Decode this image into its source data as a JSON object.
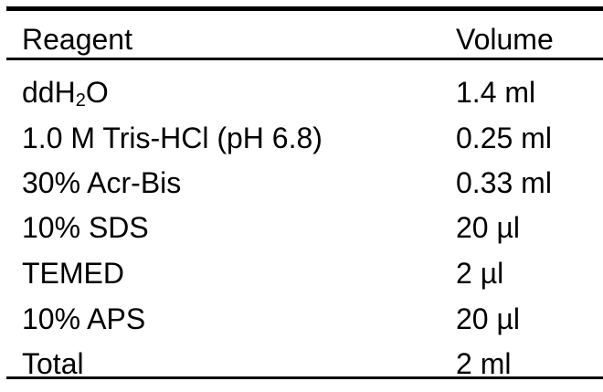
{
  "table": {
    "headers": {
      "reagent": "Reagent",
      "volume": "Volume"
    },
    "formula": {
      "prefix": "ddH",
      "subscript": "2",
      "suffix": "O"
    },
    "rows": [
      {
        "reagent": "ddH₂O",
        "volume": "1.4 ml"
      },
      {
        "reagent": "1.0 M Tris-HCl (pH 6.8)",
        "volume": "0.25 ml"
      },
      {
        "reagent": "30% Acr-Bis",
        "volume": "0.33 ml"
      },
      {
        "reagent": "10% SDS",
        "volume": "20 µl"
      },
      {
        "reagent": "TEMED",
        "volume": "2 µl"
      },
      {
        "reagent": "10% APS",
        "volume": "20 µl"
      },
      {
        "reagent": "Total",
        "volume": "2 ml"
      }
    ]
  }
}
